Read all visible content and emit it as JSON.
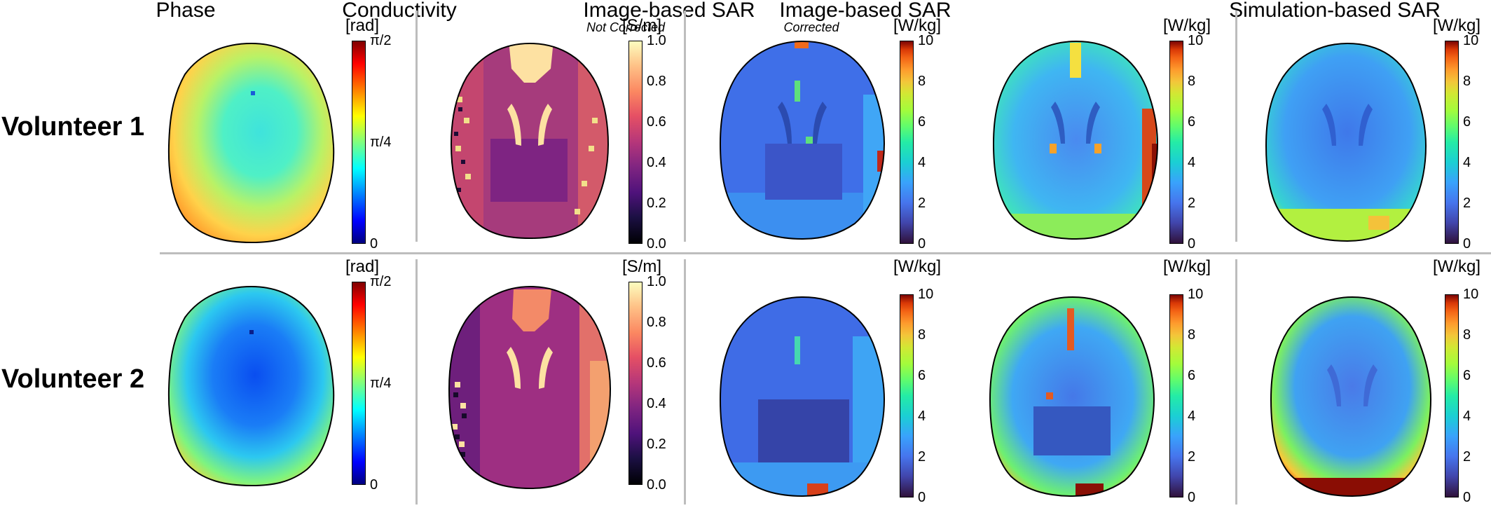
{
  "columns": [
    {
      "title": "Phase",
      "subtitle": ""
    },
    {
      "title": "Conductivity",
      "subtitle": ""
    },
    {
      "title": "Image-based SAR",
      "subtitle": "Not Corrected"
    },
    {
      "title": "Image-based SAR",
      "subtitle": "Corrected"
    },
    {
      "title": "Simulation-based SAR",
      "subtitle": ""
    }
  ],
  "rows": [
    {
      "label": "Volunteer 1"
    },
    {
      "label": "Volunteer 2"
    }
  ],
  "colorbars": {
    "phase": {
      "unit": "[rad]",
      "ticks": [
        "π/2",
        "π/4",
        "0"
      ],
      "colormap": "jet"
    },
    "conductivity": {
      "unit": "[S/m]",
      "ticks": [
        "1.0",
        "0.8",
        "0.6",
        "0.4",
        "0.2",
        "0.0"
      ],
      "colormap": "magma"
    },
    "sar": {
      "unit": "[W/kg]",
      "ticks": [
        "10",
        "8",
        "6",
        "4",
        "2",
        "0"
      ],
      "colormap": "turbo"
    }
  }
}
